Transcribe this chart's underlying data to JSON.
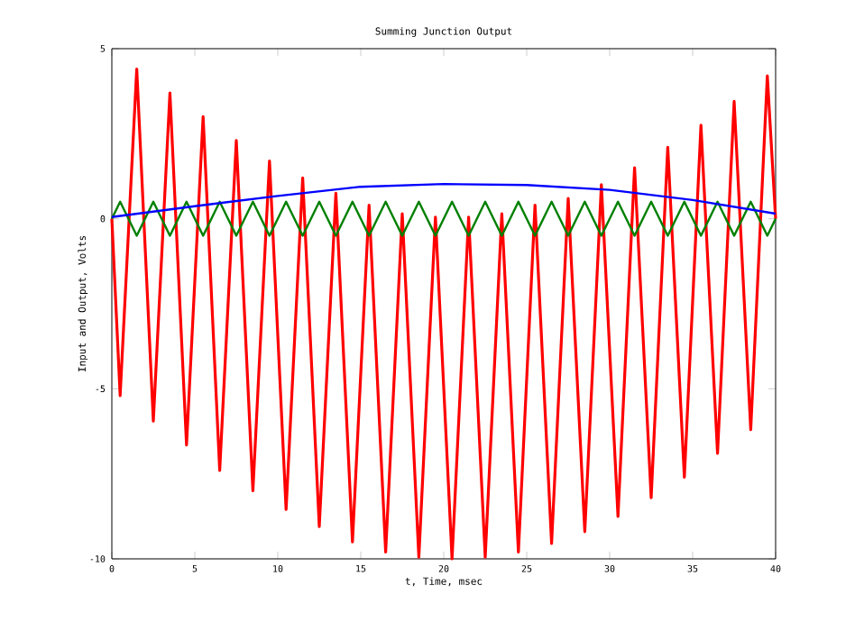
{
  "chart_data": {
    "type": "line",
    "title": "Summing Junction Output",
    "xlabel": "t, Time, msec",
    "ylabel": "Input and Output, Volts",
    "xlim": [
      0,
      40
    ],
    "ylim": [
      -10,
      5
    ],
    "xticks": [
      0,
      5,
      10,
      15,
      20,
      25,
      30,
      35,
      40
    ],
    "yticks": [
      -10,
      -5,
      0,
      5
    ],
    "grid": false,
    "marker": "none",
    "line_style": "solid",
    "series": [
      {
        "color": "#ff0000",
        "x": [
          0,
          0.5,
          1.5,
          2.5,
          3.5,
          4.5,
          5.5,
          6.5,
          7.5,
          8.5,
          9.5,
          10.5,
          11.5,
          12.5,
          13.5,
          14.5,
          15.5,
          16.5,
          17.5,
          18.5,
          19.5,
          20.5,
          21.5,
          22.5,
          23.5,
          24.5,
          25.5,
          26.5,
          27.5,
          28.5,
          29.5,
          30.5,
          31.5,
          32.5,
          33.5,
          34.5,
          35.5,
          36.5,
          37.5,
          38.5,
          39.5,
          40
        ],
        "values": [
          0,
          -5.2,
          4.4,
          -5.95,
          3.7,
          -6.65,
          3.0,
          -7.4,
          2.3,
          -8.0,
          1.7,
          -8.55,
          1.2,
          -9.05,
          0.75,
          -9.5,
          0.4,
          -9.8,
          0.15,
          -9.95,
          0.05,
          -10,
          0.05,
          -9.95,
          0.15,
          -9.8,
          0.4,
          -9.55,
          0.6,
          -9.2,
          1.0,
          -8.75,
          1.5,
          -8.2,
          2.1,
          -7.6,
          2.75,
          -6.9,
          3.45,
          -6.2,
          4.2,
          0
        ]
      },
      {
        "color": "#008000",
        "x": [
          0,
          0.5,
          1.5,
          2.5,
          3.5,
          4.5,
          5.5,
          6.5,
          7.5,
          8.5,
          9.5,
          10.5,
          11.5,
          12.5,
          13.5,
          14.5,
          15.5,
          16.5,
          17.5,
          18.5,
          19.5,
          20.5,
          21.5,
          22.5,
          23.5,
          24.5,
          25.5,
          26.5,
          27.5,
          28.5,
          29.5,
          30.5,
          31.5,
          32.5,
          33.5,
          34.5,
          35.5,
          36.5,
          37.5,
          38.5,
          39.5,
          40
        ],
        "values": [
          0,
          0.5,
          -0.5,
          0.5,
          -0.5,
          0.5,
          -0.5,
          0.5,
          -0.5,
          0.5,
          -0.5,
          0.5,
          -0.5,
          0.5,
          -0.5,
          0.5,
          -0.5,
          0.5,
          -0.5,
          0.5,
          -0.5,
          0.5,
          -0.5,
          0.5,
          -0.5,
          0.5,
          -0.5,
          0.5,
          -0.5,
          0.5,
          -0.5,
          0.5,
          -0.5,
          0.5,
          -0.5,
          0.5,
          -0.5,
          0.5,
          -0.5,
          0.5,
          -0.5,
          0
        ]
      },
      {
        "color": "#0000ff",
        "x": [
          0,
          5,
          10,
          15,
          20,
          25,
          30,
          35,
          40
        ],
        "values": [
          0.05,
          0.37,
          0.67,
          0.94,
          1.02,
          0.99,
          0.85,
          0.55,
          0.15
        ]
      }
    ]
  }
}
